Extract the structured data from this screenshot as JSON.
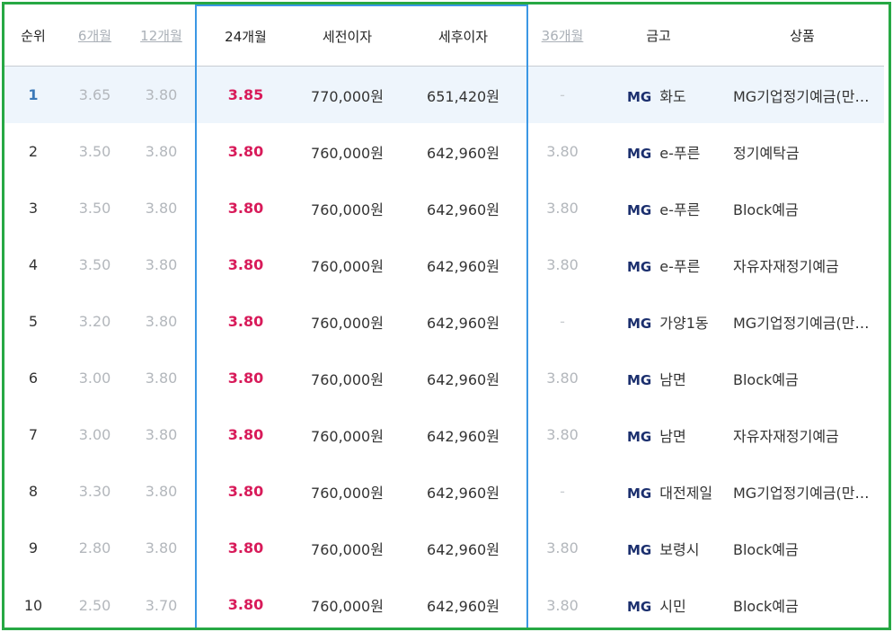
{
  "headers": {
    "rank": "순위",
    "m6": "6개월",
    "m12": "12개월",
    "m24": "24개월",
    "pretax": "세전이자",
    "aftertax": "세후이자",
    "m36": "36개월",
    "bank": "금고",
    "product": "상품"
  },
  "colors": {
    "border": "#27a844",
    "highlight": "#3b97e4",
    "rate": "#d81b5a",
    "first_row_bg": "#eef5fc"
  },
  "rows": [
    {
      "rank": "1",
      "m6": "3.65",
      "m12": "3.80",
      "m24": "3.85",
      "pretax": "770,000원",
      "aftertax": "651,420원",
      "m36": "-",
      "logo": "MG",
      "bank": "화도",
      "product": "MG기업정기예금(만기일시지급식)"
    },
    {
      "rank": "2",
      "m6": "3.50",
      "m12": "3.80",
      "m24": "3.80",
      "pretax": "760,000원",
      "aftertax": "642,960원",
      "m36": "3.80",
      "logo": "MG",
      "bank": "e-푸른",
      "product": "정기예탁금"
    },
    {
      "rank": "3",
      "m6": "3.50",
      "m12": "3.80",
      "m24": "3.80",
      "pretax": "760,000원",
      "aftertax": "642,960원",
      "m36": "3.80",
      "logo": "MG",
      "bank": "e-푸른",
      "product": "Block예금"
    },
    {
      "rank": "4",
      "m6": "3.50",
      "m12": "3.80",
      "m24": "3.80",
      "pretax": "760,000원",
      "aftertax": "642,960원",
      "m36": "3.80",
      "logo": "MG",
      "bank": "e-푸른",
      "product": "자유자재정기예금"
    },
    {
      "rank": "5",
      "m6": "3.20",
      "m12": "3.80",
      "m24": "3.80",
      "pretax": "760,000원",
      "aftertax": "642,960원",
      "m36": "-",
      "logo": "MG",
      "bank": "가양1동",
      "product": "MG기업정기예금(만기일시지급식)"
    },
    {
      "rank": "6",
      "m6": "3.00",
      "m12": "3.80",
      "m24": "3.80",
      "pretax": "760,000원",
      "aftertax": "642,960원",
      "m36": "3.80",
      "logo": "MG",
      "bank": "남면",
      "product": "Block예금"
    },
    {
      "rank": "7",
      "m6": "3.00",
      "m12": "3.80",
      "m24": "3.80",
      "pretax": "760,000원",
      "aftertax": "642,960원",
      "m36": "3.80",
      "logo": "MG",
      "bank": "남면",
      "product": "자유자재정기예금"
    },
    {
      "rank": "8",
      "m6": "3.30",
      "m12": "3.80",
      "m24": "3.80",
      "pretax": "760,000원",
      "aftertax": "642,960원",
      "m36": "-",
      "logo": "MG",
      "bank": "대전제일",
      "product": "MG기업정기예금(만기일시지급식)"
    },
    {
      "rank": "9",
      "m6": "2.80",
      "m12": "3.80",
      "m24": "3.80",
      "pretax": "760,000원",
      "aftertax": "642,960원",
      "m36": "3.80",
      "logo": "MG",
      "bank": "보령시",
      "product": "Block예금"
    },
    {
      "rank": "10",
      "m6": "2.50",
      "m12": "3.70",
      "m24": "3.80",
      "pretax": "760,000원",
      "aftertax": "642,960원",
      "m36": "3.80",
      "logo": "MG",
      "bank": "시민",
      "product": "Block예금"
    }
  ]
}
